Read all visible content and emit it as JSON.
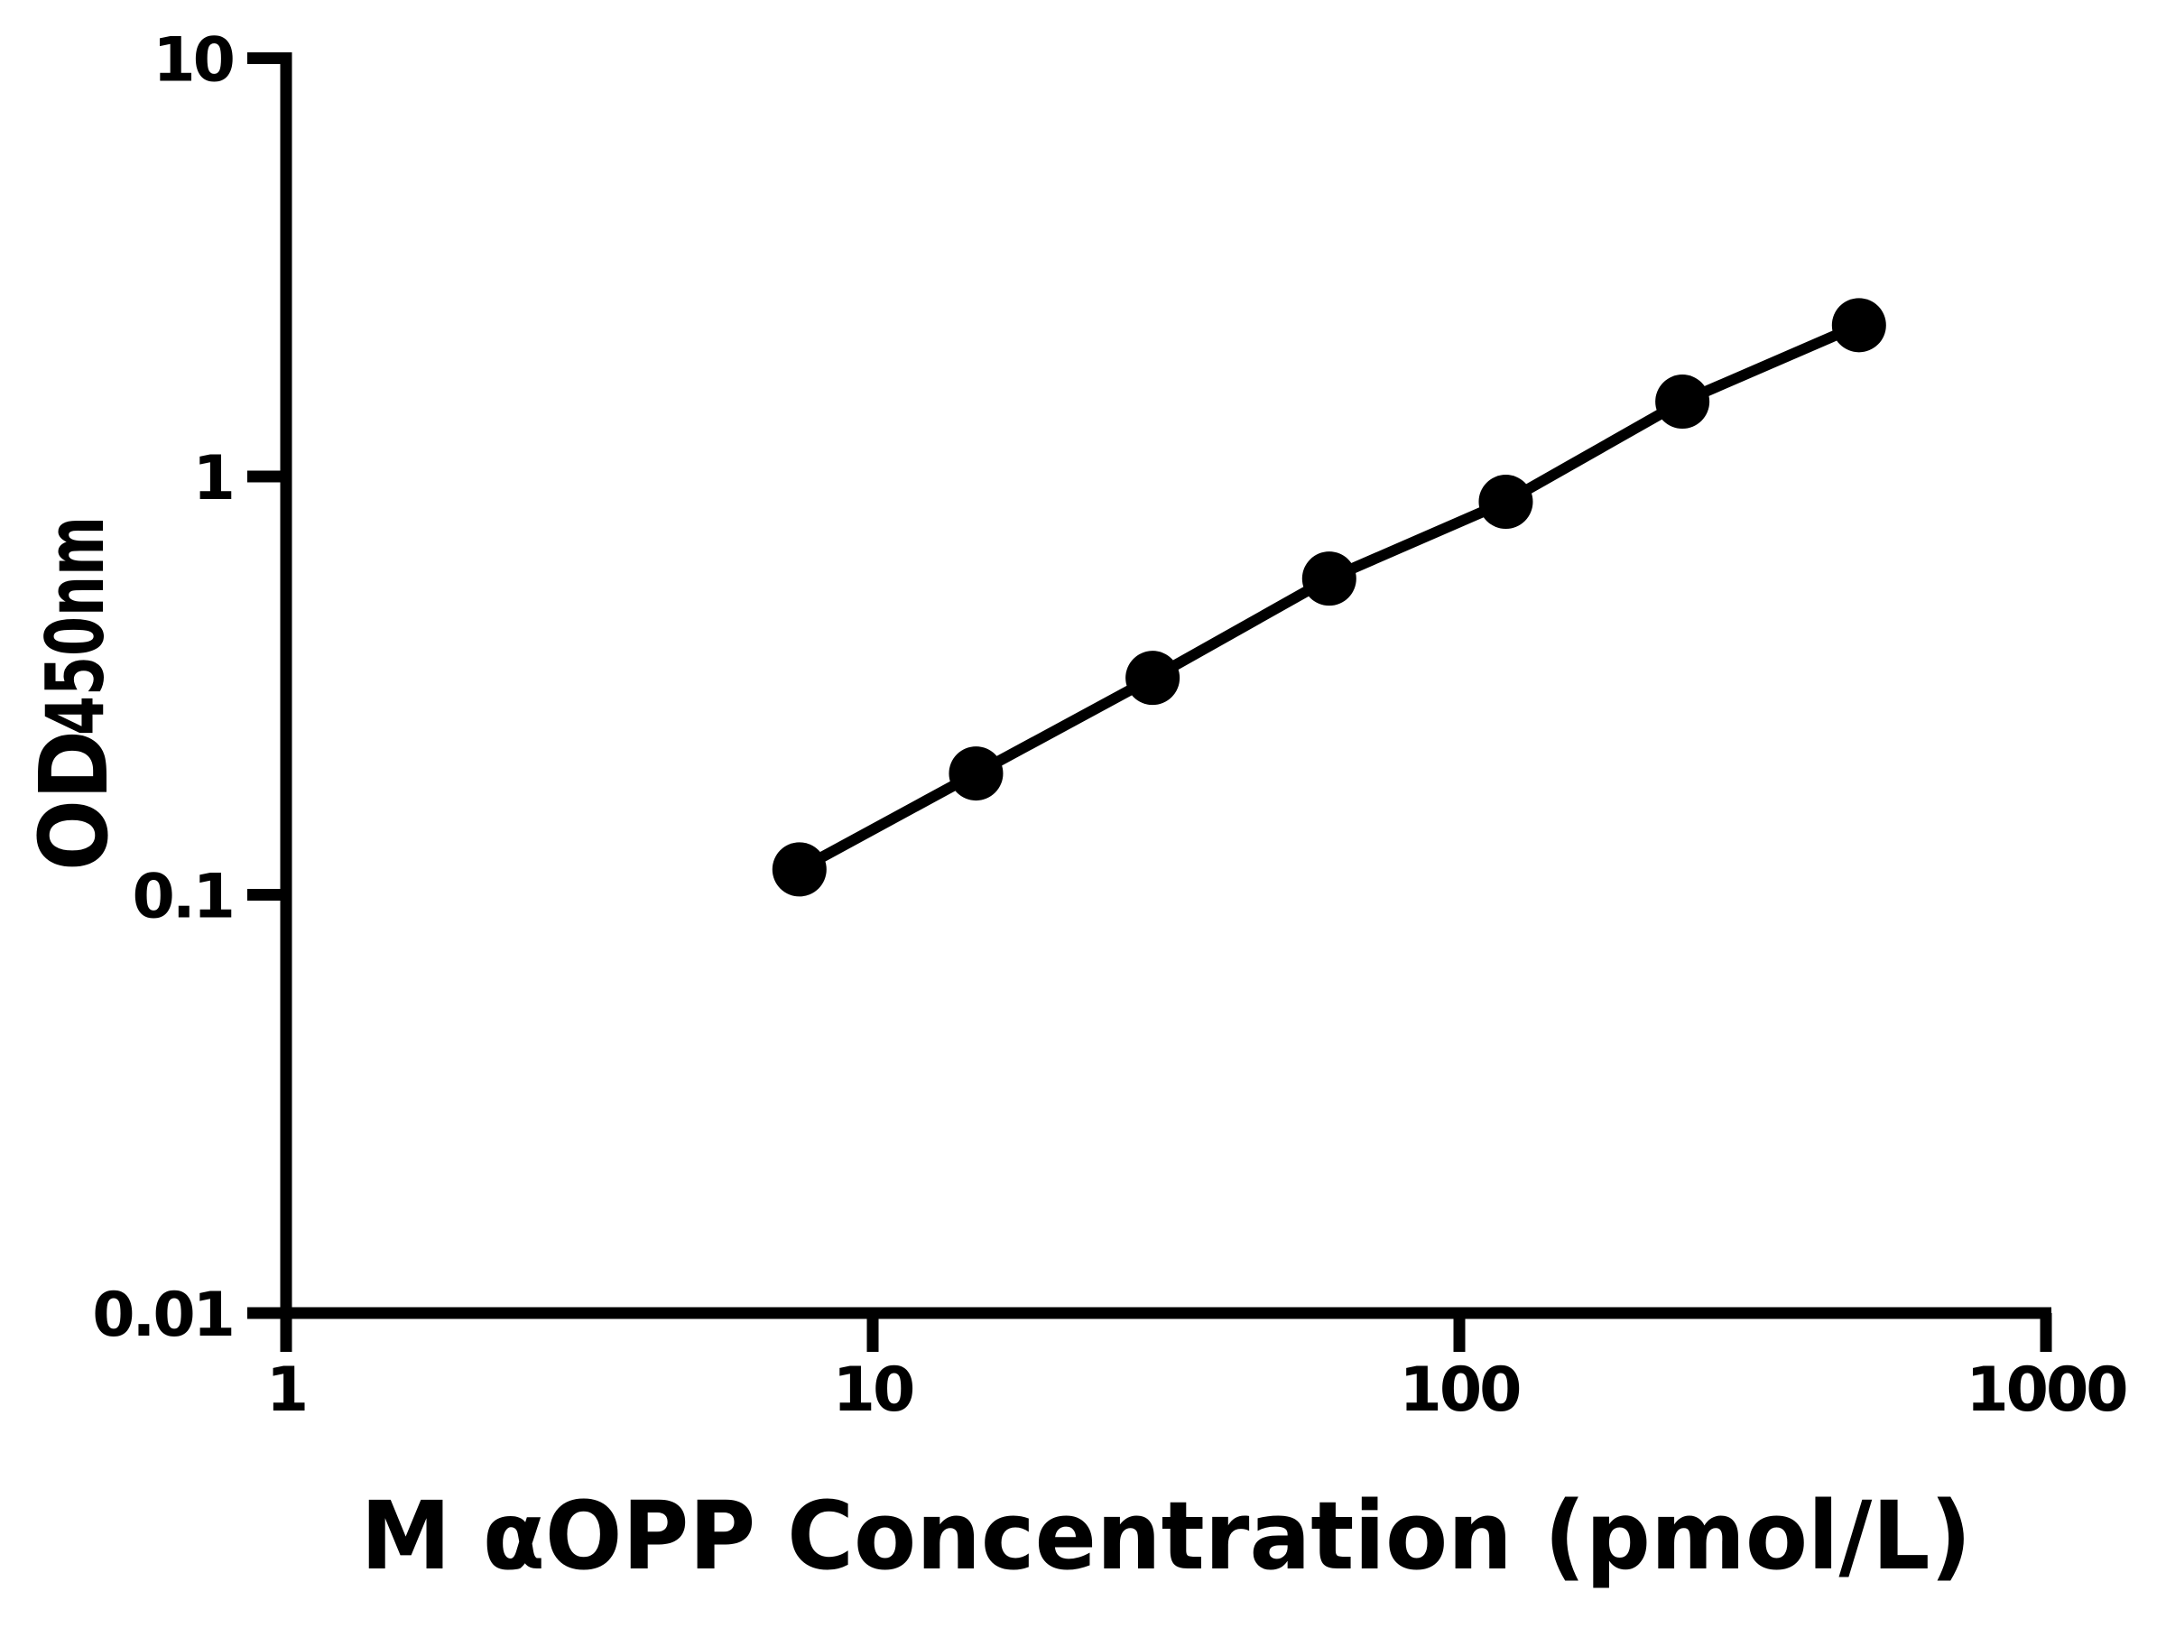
{
  "figure": {
    "background_color": "#ffffff",
    "foreground_color": "#000000"
  },
  "chart_data": {
    "type": "scatter",
    "title": "",
    "xlabel": "M αOPP Concentration (pmol/L)",
    "ylabel_main": "OD",
    "ylabel_sub": "450nm",
    "xscale": "log",
    "yscale": "log",
    "xlim": [
      1,
      1000
    ],
    "ylim": [
      0.01,
      10
    ],
    "x": [
      7.5,
      15,
      30,
      60,
      120,
      240,
      480
    ],
    "y": [
      0.115,
      0.195,
      0.33,
      0.57,
      0.87,
      1.51,
      2.3
    ],
    "x_ticks": [
      1,
      10,
      100,
      1000
    ],
    "x_tick_labels": [
      "1",
      "10",
      "100",
      "1000"
    ],
    "y_ticks": [
      10,
      1,
      0.1,
      0.01
    ],
    "y_tick_labels": [
      "10",
      "1",
      "0.1",
      "0.01"
    ],
    "grid": "off",
    "legend": "none",
    "marker_color": "#000000",
    "line_color": "#000000",
    "axis_color": "#000000"
  }
}
